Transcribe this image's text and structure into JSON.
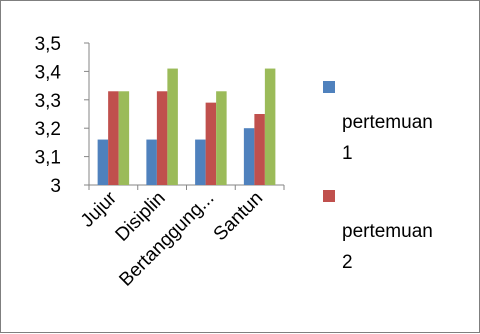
{
  "chart_data": {
    "type": "bar",
    "categories": [
      "Jujur",
      "Disiplin",
      "Bertanggung...",
      "Santun"
    ],
    "series": [
      {
        "name": "pertemuan 1",
        "values": [
          3.16,
          3.16,
          3.16,
          3.2
        ],
        "color": "#4f81bd"
      },
      {
        "name": "pertemuan 2",
        "values": [
          3.33,
          3.33,
          3.29,
          3.25
        ],
        "color": "#c0504d"
      },
      {
        "name": "",
        "values": [
          3.33,
          3.41,
          3.33,
          3.41
        ],
        "color": "#9bbb59"
      }
    ],
    "y_ticks": [
      "3",
      "3,1",
      "3,2",
      "3,3",
      "3,4",
      "3,5"
    ],
    "ylim": [
      3,
      3.5
    ],
    "grid": false,
    "legend_position": "right",
    "legend_lines": [
      [
        "pertemuan",
        "1"
      ],
      [
        "pertemuan",
        "2"
      ]
    ]
  }
}
